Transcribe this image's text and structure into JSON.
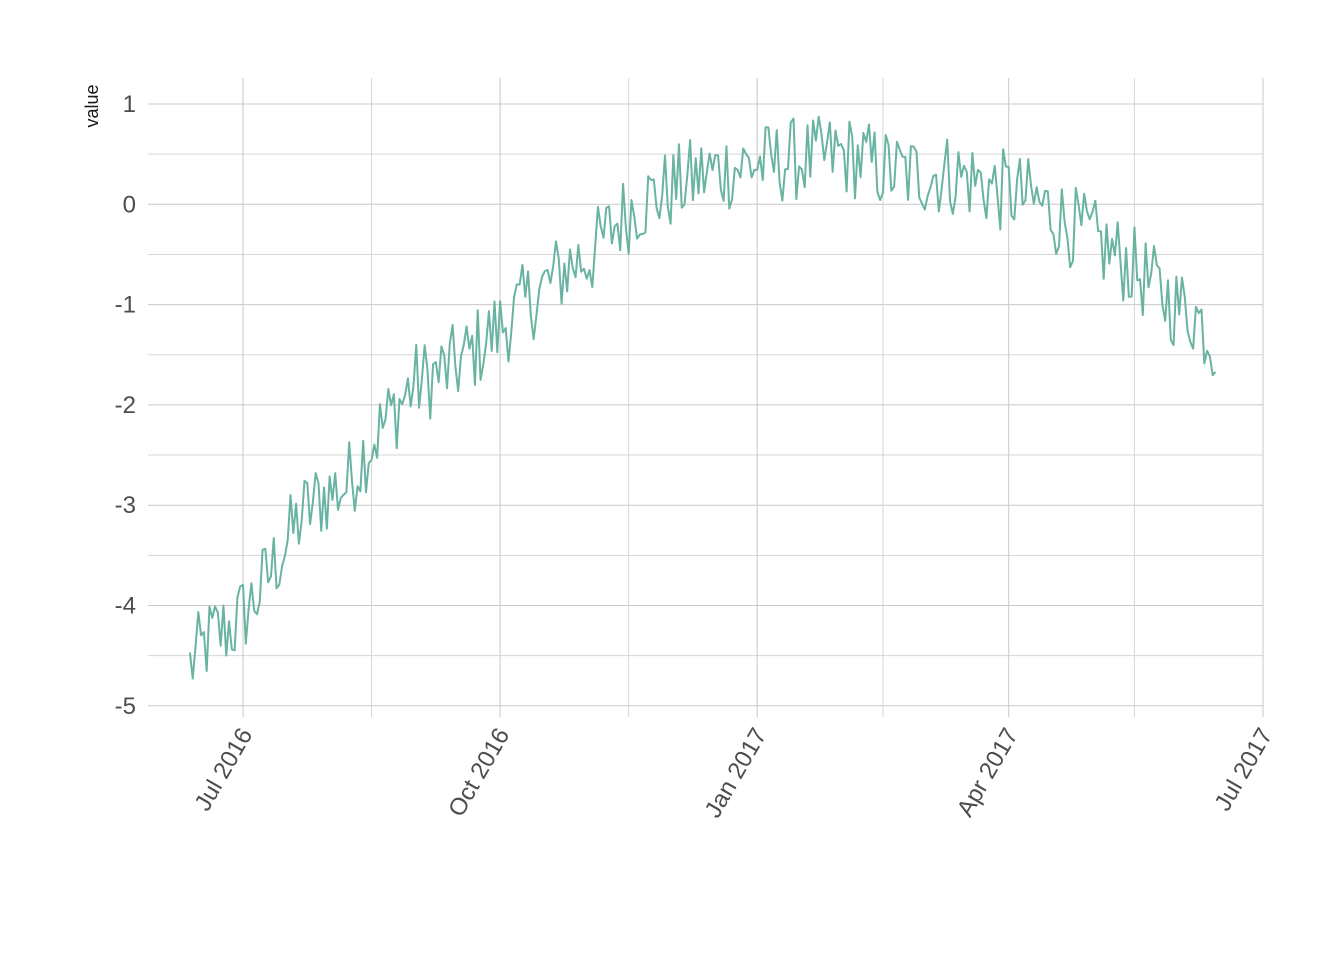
{
  "chart_data": {
    "type": "line",
    "title": "",
    "xlabel": "",
    "ylabel": "value",
    "grid": true,
    "legend": "none",
    "colors": {
      "line": "#69b3a2"
    },
    "xlim": [
      "2016-05-28",
      "2017-07-01"
    ],
    "ylim": [
      -5.0,
      1.2
    ],
    "y_ticks": [
      1,
      0,
      -1,
      -2,
      -3,
      -4,
      -5
    ],
    "y_tick_labels": [
      "1",
      "0",
      "-1",
      "-2",
      "-3",
      "-4",
      "-5"
    ],
    "x_major_ticks": [
      "2016-07-01",
      "2016-10-01",
      "2017-01-01",
      "2017-04-01",
      "2017-07-01"
    ],
    "x_tick_labels": [
      "Jul 2016",
      "Oct 2016",
      "Jan 2017",
      "Apr 2017",
      "Jul 2017"
    ],
    "x_minor_ticks": [
      "2016-08-16",
      "2016-11-16",
      "2017-02-15",
      "2017-05-16"
    ],
    "series": [
      {
        "x": [
          "2016-06-12",
          "2016-06-20",
          "2016-06-28",
          "2016-07-06",
          "2016-07-14",
          "2016-07-22",
          "2016-07-30",
          "2016-08-07",
          "2016-08-15",
          "2016-08-23",
          "2016-08-31",
          "2016-09-08",
          "2016-09-16",
          "2016-09-24",
          "2016-10-02",
          "2016-10-10",
          "2016-10-18",
          "2016-10-26",
          "2016-11-03",
          "2016-11-11",
          "2016-11-19",
          "2016-11-27",
          "2016-12-05",
          "2016-12-13",
          "2016-12-21",
          "2016-12-29",
          "2017-01-06",
          "2017-01-14",
          "2017-01-22",
          "2017-01-30",
          "2017-02-07",
          "2017-02-15",
          "2017-02-23",
          "2017-03-03",
          "2017-03-11",
          "2017-03-19",
          "2017-03-27",
          "2017-04-04",
          "2017-04-12",
          "2017-04-20",
          "2017-04-28",
          "2017-05-06",
          "2017-05-14",
          "2017-05-22",
          "2017-05-30",
          "2017-06-07",
          "2017-06-14"
        ],
        "y": [
          -4.6,
          -4.3,
          -4.2,
          -3.9,
          -3.5,
          -3.1,
          -2.9,
          -2.8,
          -2.4,
          -2.1,
          -1.8,
          -1.7,
          -1.6,
          -1.4,
          -1.2,
          -1.0,
          -0.8,
          -0.6,
          -0.5,
          -0.2,
          0.0,
          0.1,
          0.2,
          0.3,
          0.35,
          0.4,
          0.4,
          0.45,
          0.45,
          0.5,
          0.45,
          0.35,
          0.3,
          0.3,
          0.3,
          0.25,
          0.15,
          0.1,
          0.0,
          -0.15,
          -0.3,
          -0.45,
          -0.6,
          -0.8,
          -1.0,
          -1.1,
          -1.4
        ]
      }
    ]
  }
}
